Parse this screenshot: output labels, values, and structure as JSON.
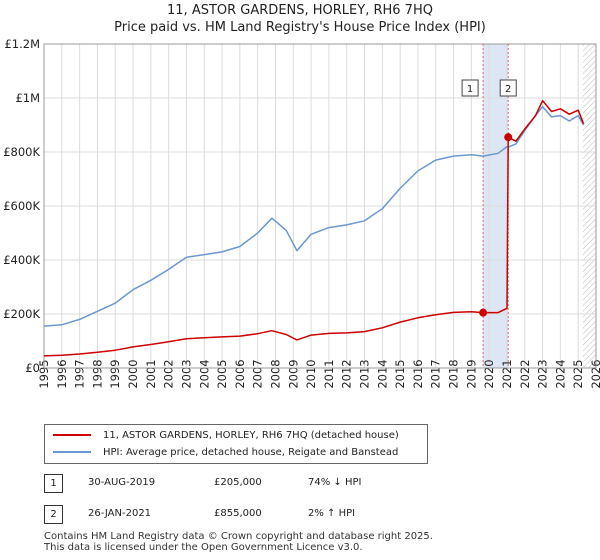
{
  "title_line1": "11, ASTOR GARDENS, HORLEY, RH6 7HQ",
  "title_line2": "Price paid vs. HM Land Registry's House Price Index (HPI)",
  "chart_data": {
    "type": "line",
    "title": "11, ASTOR GARDENS, HORLEY, RH6 7HQ — Price paid vs. HM Land Registry's House Price Index (HPI)",
    "xlim": [
      1995,
      2026
    ],
    "ylim": [
      0,
      1200000
    ],
    "y_ticks": [
      0,
      200000,
      400000,
      600000,
      800000,
      1000000,
      1200000
    ],
    "y_tick_labels": [
      "£0",
      "£200K",
      "£400K",
      "£600K",
      "£800K",
      "£1M",
      "£1.2M"
    ],
    "x_ticks": [
      "1995",
      "1996",
      "1997",
      "1998",
      "1999",
      "2000",
      "2001",
      "2002",
      "2003",
      "2004",
      "2005",
      "2006",
      "2007",
      "2008",
      "2009",
      "2010",
      "2011",
      "2012",
      "2013",
      "2014",
      "2015",
      "2016",
      "2017",
      "2018",
      "2019",
      "2020",
      "2021",
      "2022",
      "2023",
      "2024",
      "2025",
      "2026"
    ],
    "grid": true,
    "colors": {
      "property": "#cc0000",
      "hpi": "#6a98d0",
      "band": "#dde6f5",
      "vline": "#e06a6a"
    },
    "series": [
      {
        "name": "11, ASTOR GARDENS, HORLEY, RH6 7HQ (detached house)",
        "x": [
          1995.0,
          1996.0,
          1997.0,
          1998.0,
          1999.0,
          2000.0,
          2001.0,
          2002.0,
          2003.0,
          2004.0,
          2005.0,
          2006.0,
          2007.0,
          2007.8,
          2008.6,
          2009.2,
          2010.0,
          2011.0,
          2012.0,
          2013.0,
          2014.0,
          2015.0,
          2016.0,
          2017.0,
          2018.0,
          2019.0,
          2019.66,
          2020.5,
          2021.0,
          2021.07,
          2021.5,
          2022.0,
          2022.6,
          2023.0,
          2023.5,
          2024.0,
          2024.5,
          2025.0,
          2025.3
        ],
        "values": [
          45000,
          47000,
          52000,
          58000,
          66000,
          78000,
          87000,
          97000,
          108000,
          112000,
          115000,
          118000,
          127000,
          138000,
          124000,
          104000,
          122000,
          128000,
          130000,
          135000,
          149000,
          170000,
          186000,
          197000,
          206000,
          208000,
          205000,
          205000,
          221000,
          855000,
          840000,
          885000,
          935000,
          990000,
          950000,
          960000,
          940000,
          955000,
          905000
        ]
      },
      {
        "name": "HPI: Average price, detached house, Reigate and Banstead",
        "x": [
          1995.0,
          1996.0,
          1997.0,
          1998.0,
          1999.0,
          2000.0,
          2001.0,
          2002.0,
          2003.0,
          2004.0,
          2005.0,
          2006.0,
          2007.0,
          2007.8,
          2008.6,
          2009.2,
          2010.0,
          2011.0,
          2012.0,
          2013.0,
          2014.0,
          2015.0,
          2016.0,
          2017.0,
          2018.0,
          2019.0,
          2019.66,
          2020.5,
          2021.0,
          2021.07,
          2021.5,
          2022.0,
          2022.6,
          2023.0,
          2023.5,
          2024.0,
          2024.5,
          2025.0,
          2025.3
        ],
        "values": [
          155000,
          160000,
          180000,
          210000,
          240000,
          290000,
          325000,
          365000,
          410000,
          420000,
          430000,
          450000,
          500000,
          555000,
          510000,
          435000,
          495000,
          520000,
          530000,
          545000,
          590000,
          665000,
          730000,
          770000,
          785000,
          790000,
          785000,
          795000,
          820000,
          818000,
          830000,
          880000,
          935000,
          968000,
          930000,
          935000,
          915000,
          935000,
          900000
        ]
      }
    ],
    "annotations": [
      {
        "label": "1",
        "x": 2019.66,
        "value": 205000
      },
      {
        "label": "2",
        "x": 2021.07,
        "value": 855000
      }
    ]
  },
  "legend": {
    "property_label": "11, ASTOR GARDENS, HORLEY, RH6 7HQ (detached house)",
    "hpi_label": "HPI: Average price, detached house, Reigate and Banstead"
  },
  "sales": [
    {
      "num": "1",
      "date": "30-AUG-2019",
      "price": "£205,000",
      "hpi": "74% ↓ HPI"
    },
    {
      "num": "2",
      "date": "26-JAN-2021",
      "price": "£855,000",
      "hpi": "2% ↑ HPI"
    }
  ],
  "footer": {
    "line1": "Contains HM Land Registry data © Crown copyright and database right 2025.",
    "line2": "This data is licensed under the Open Government Licence v3.0."
  }
}
